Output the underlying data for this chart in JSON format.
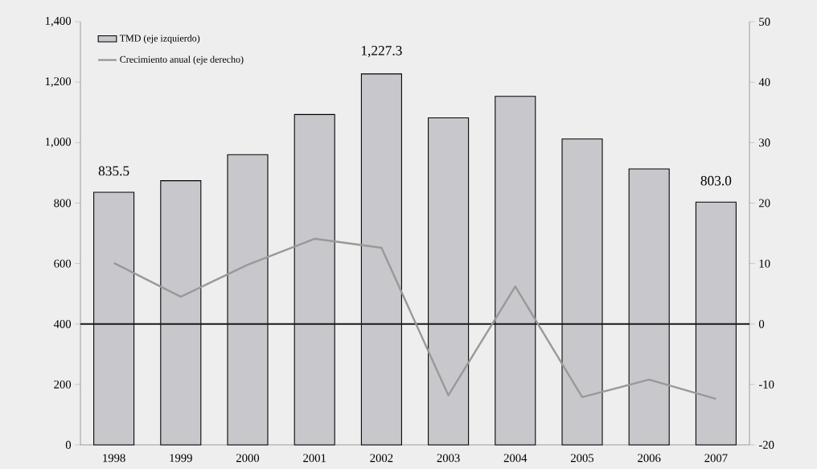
{
  "chart_data": {
    "type": "bar",
    "categories": [
      "1998",
      "1999",
      "2000",
      "2001",
      "2002",
      "2003",
      "2004",
      "2005",
      "2006",
      "2007"
    ],
    "series": [
      {
        "name": "TMD (eje izquierdo)",
        "color": "#c8c8cc",
        "values": [
          835.5,
          874,
          960,
          1093,
          1227.3,
          1082,
          1153,
          1012,
          913,
          803.0
        ],
        "value_labels": [
          "835.5",
          null,
          null,
          null,
          "1,227.3",
          null,
          null,
          null,
          null,
          "803.0"
        ]
      },
      {
        "name": "Crecimiento anual (eje derecho)",
        "type": "line",
        "axis": "y2",
        "color": "#999999",
        "values": [
          10.1,
          4.5,
          9.8,
          14.1,
          12.6,
          -11.8,
          6.2,
          -12.1,
          -9.2,
          -12.4
        ]
      }
    ],
    "ylim": [
      0,
      1400
    ],
    "yticks": [
      0,
      200,
      400,
      600,
      800,
      {
        "value": 1000,
        "label": "1,000"
      },
      {
        "value": 1200,
        "label": "1,200"
      },
      {
        "value": 1400,
        "label": "1,400"
      }
    ],
    "y2lim": [
      -20,
      50
    ],
    "y2ticks": [
      -20,
      -10,
      0,
      10,
      20,
      30,
      40,
      50
    ],
    "ref_lines": [
      {
        "axis": "y2",
        "value": 0,
        "color": "#1a1a1a"
      }
    ],
    "legend": "top left"
  }
}
